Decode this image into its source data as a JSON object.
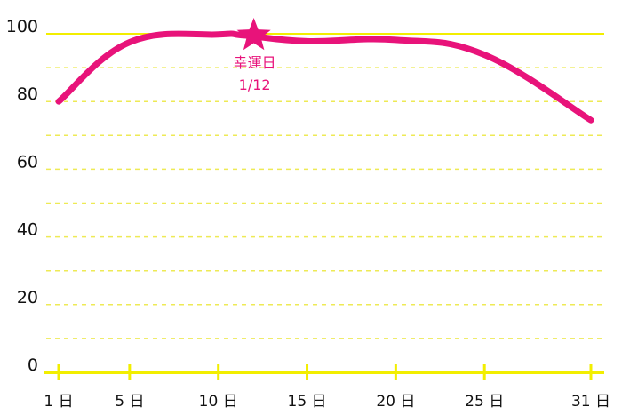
{
  "chart_data": {
    "type": "line",
    "title": "",
    "xlabel": "",
    "ylabel": "",
    "ylim": [
      0,
      100
    ],
    "yticks": [
      0,
      20,
      40,
      60,
      80,
      100
    ],
    "xlim": [
      1,
      31
    ],
    "xticks": [
      {
        "value": 1,
        "label": "1 日"
      },
      {
        "value": 5,
        "label": "5 日"
      },
      {
        "value": 10,
        "label": "10 日"
      },
      {
        "value": 15,
        "label": "15 日"
      },
      {
        "value": 20,
        "label": "20 日"
      },
      {
        "value": 25,
        "label": "25 日"
      },
      {
        "value": 31,
        "label": "31 日"
      }
    ],
    "grid": true,
    "legend": "none",
    "series": [
      {
        "color": "#e8137a",
        "x": [
          1,
          5,
          10,
          11.5,
          15,
          20,
          25,
          31
        ],
        "y": [
          80,
          97.5,
          99.8,
          99.5,
          97.8,
          98.2,
          93.8,
          74.5
        ]
      }
    ],
    "annotation": {
      "x": 12,
      "y": 100,
      "icon": "star-icon",
      "lines": [
        "幸運日",
        "1/12"
      ]
    },
    "colors": {
      "series": "#e8137a",
      "axis": "#f2ee00",
      "grid": "#eeea55"
    }
  }
}
